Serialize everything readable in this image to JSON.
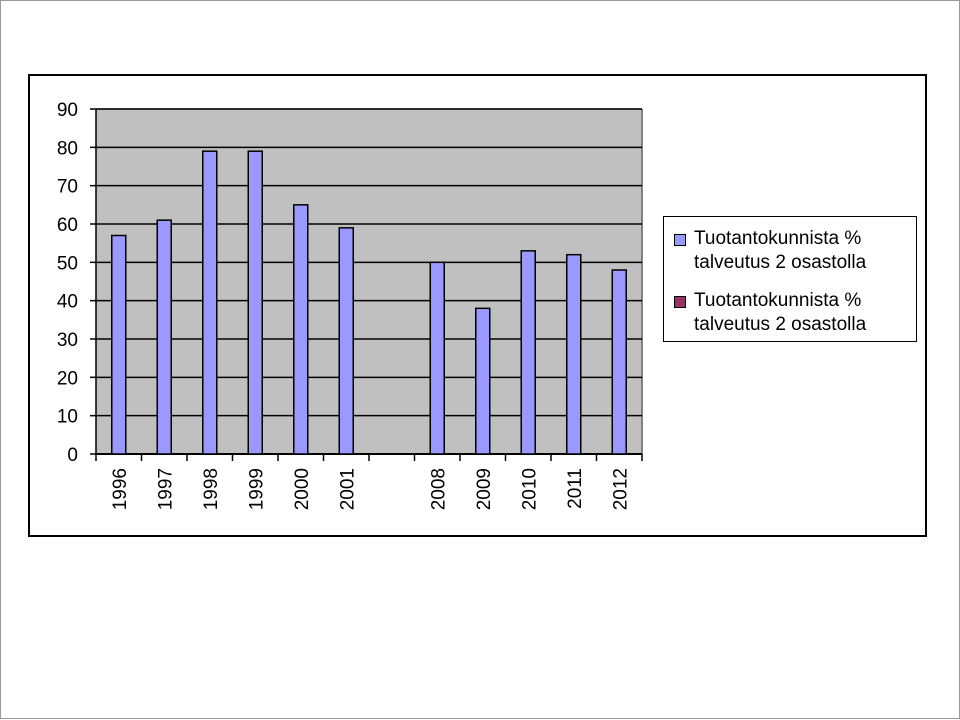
{
  "chart_data": {
    "type": "bar",
    "categories": [
      "1996",
      "1997",
      "1998",
      "1999",
      "2000",
      "2001",
      "",
      "2008",
      "2009",
      "2010",
      "2011",
      "2012"
    ],
    "series": [
      {
        "name": "Tuotantokunnista % talveutus 2 osastolla",
        "color": "#9999ff",
        "values": [
          57,
          61,
          79,
          79,
          65,
          59,
          null,
          50,
          38,
          53,
          52,
          48
        ]
      },
      {
        "name": "Tuotantokunnista % talveutus 2 osastolla",
        "color": "#993366",
        "values": [
          null,
          null,
          null,
          null,
          null,
          null,
          null,
          null,
          null,
          null,
          null,
          null
        ]
      }
    ],
    "ylim": [
      0,
      90
    ],
    "yticks": [
      0,
      10,
      20,
      30,
      40,
      50,
      60,
      70,
      80,
      90
    ],
    "grid": true,
    "plot_background": "#c0c0c0",
    "legend_position": "right"
  }
}
